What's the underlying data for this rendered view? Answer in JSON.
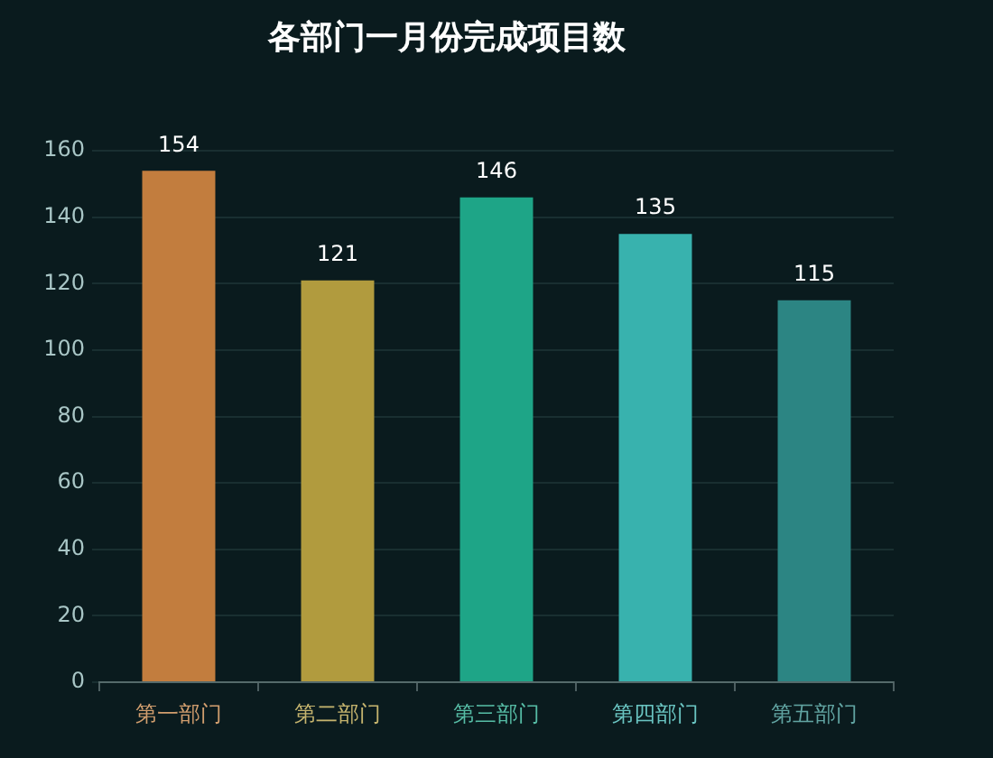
{
  "chart_data": {
    "type": "bar",
    "title": "各部门一月份完成项目数",
    "categories": [
      "第一部门",
      "第二部门",
      "第三部门",
      "第四部门",
      "第五部门"
    ],
    "values": [
      154,
      121,
      146,
      135,
      115
    ],
    "colors": [
      "#c27d3e",
      "#b19b3e",
      "#1ea587",
      "#38b2ae",
      "#2c8583"
    ],
    "ylim": [
      0,
      160
    ],
    "yticks": [
      0,
      20,
      40,
      60,
      80,
      100,
      120,
      140,
      160
    ],
    "grid": "y",
    "data_labels": true
  }
}
